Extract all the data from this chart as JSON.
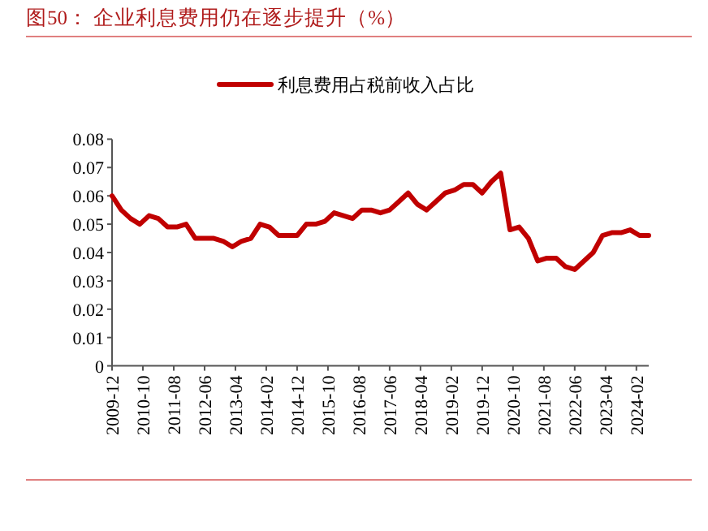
{
  "chart_data": {
    "type": "line",
    "title": "图50：  企业利息费用仍在逐步提升（%）",
    "x": [
      "2009-12",
      "2010-03",
      "2010-06",
      "2010-09",
      "2010-12",
      "2011-03",
      "2011-06",
      "2011-09",
      "2011-12",
      "2012-03",
      "2012-06",
      "2012-09",
      "2012-12",
      "2013-03",
      "2013-06",
      "2013-09",
      "2013-12",
      "2014-03",
      "2014-06",
      "2014-09",
      "2014-12",
      "2015-03",
      "2015-06",
      "2015-09",
      "2015-12",
      "2016-03",
      "2016-06",
      "2016-09",
      "2016-12",
      "2017-03",
      "2017-06",
      "2017-09",
      "2017-12",
      "2018-03",
      "2018-06",
      "2018-09",
      "2018-12",
      "2019-03",
      "2019-06",
      "2019-09",
      "2019-12",
      "2020-03",
      "2020-06",
      "2020-09",
      "2020-12",
      "2021-03",
      "2021-06",
      "2021-09",
      "2021-12",
      "2022-03",
      "2022-06",
      "2022-09",
      "2022-12",
      "2023-03",
      "2023-06",
      "2023-09",
      "2023-12",
      "2024-03",
      "2024-06"
    ],
    "series": [
      {
        "name": "利息费用占税前收入占比",
        "color": "#c00000",
        "values": [
          0.06,
          0.055,
          0.052,
          0.05,
          0.053,
          0.052,
          0.049,
          0.049,
          0.05,
          0.045,
          0.045,
          0.045,
          0.044,
          0.042,
          0.044,
          0.045,
          0.05,
          0.049,
          0.046,
          0.046,
          0.046,
          0.05,
          0.05,
          0.051,
          0.054,
          0.053,
          0.052,
          0.055,
          0.055,
          0.054,
          0.055,
          0.058,
          0.061,
          0.057,
          0.055,
          0.058,
          0.061,
          0.062,
          0.064,
          0.064,
          0.061,
          0.065,
          0.068,
          0.048,
          0.049,
          0.045,
          0.037,
          0.038,
          0.038,
          0.035,
          0.034,
          0.037,
          0.04,
          0.046,
          0.047,
          0.047,
          0.048,
          0.046,
          0.046
        ]
      }
    ],
    "xlim": [
      "2009-12",
      "2024-06"
    ],
    "xticks": [
      "2009-12",
      "2010-10",
      "2011-08",
      "2012-06",
      "2013-04",
      "2014-02",
      "2014-12",
      "2015-10",
      "2016-08",
      "2017-06",
      "2018-04",
      "2019-02",
      "2019-12",
      "2020-10",
      "2021-08",
      "2022-06",
      "2023-04",
      "2024-02"
    ],
    "ylim": [
      0,
      0.08
    ],
    "yticks": [
      0,
      0.01,
      0.02,
      0.03,
      0.04,
      0.05,
      0.06,
      0.07,
      0.08
    ],
    "legend": "top",
    "grid": false,
    "marker": "none",
    "line_style": "solid"
  }
}
